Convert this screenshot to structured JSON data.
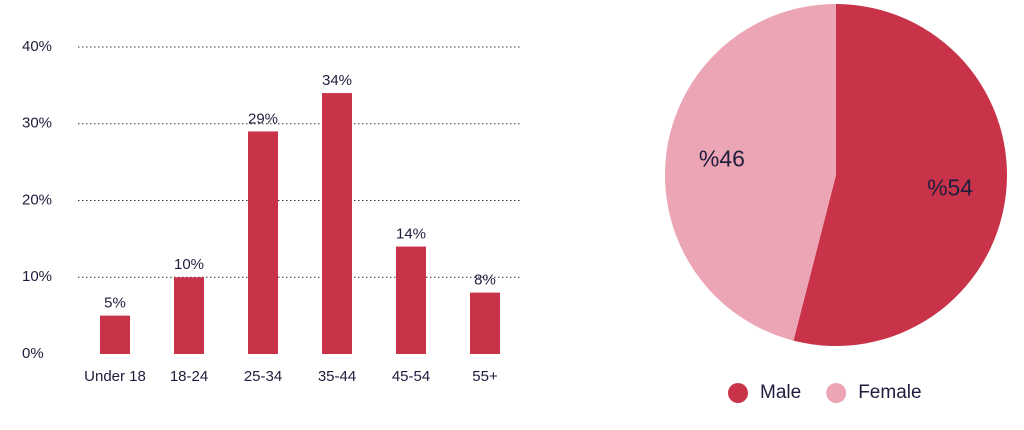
{
  "chart_data": [
    {
      "type": "bar",
      "categories": [
        "Under 18",
        "18-24",
        "25-34",
        "35-44",
        "45-54",
        "55+"
      ],
      "values": [
        5,
        10,
        29,
        34,
        14,
        8
      ],
      "value_labels": [
        "5%",
        "10%",
        "29%",
        "34%",
        "14%",
        "8%"
      ],
      "color": "#c8334a",
      "ylim": [
        0,
        40
      ],
      "yticks": [
        {
          "value": 0,
          "label": "0%"
        },
        {
          "value": 10,
          "label": "10%"
        },
        {
          "value": 20,
          "label": "20%"
        },
        {
          "value": 30,
          "label": "30%"
        },
        {
          "value": 40,
          "label": "40%"
        }
      ],
      "grid": true
    },
    {
      "type": "pie",
      "categories": [
        "Male",
        "Female"
      ],
      "values": [
        54,
        46
      ],
      "value_labels": [
        "%54",
        "%46"
      ],
      "colors": [
        "#c8334a",
        "#eba5b5"
      ],
      "legend": "bottom"
    }
  ]
}
